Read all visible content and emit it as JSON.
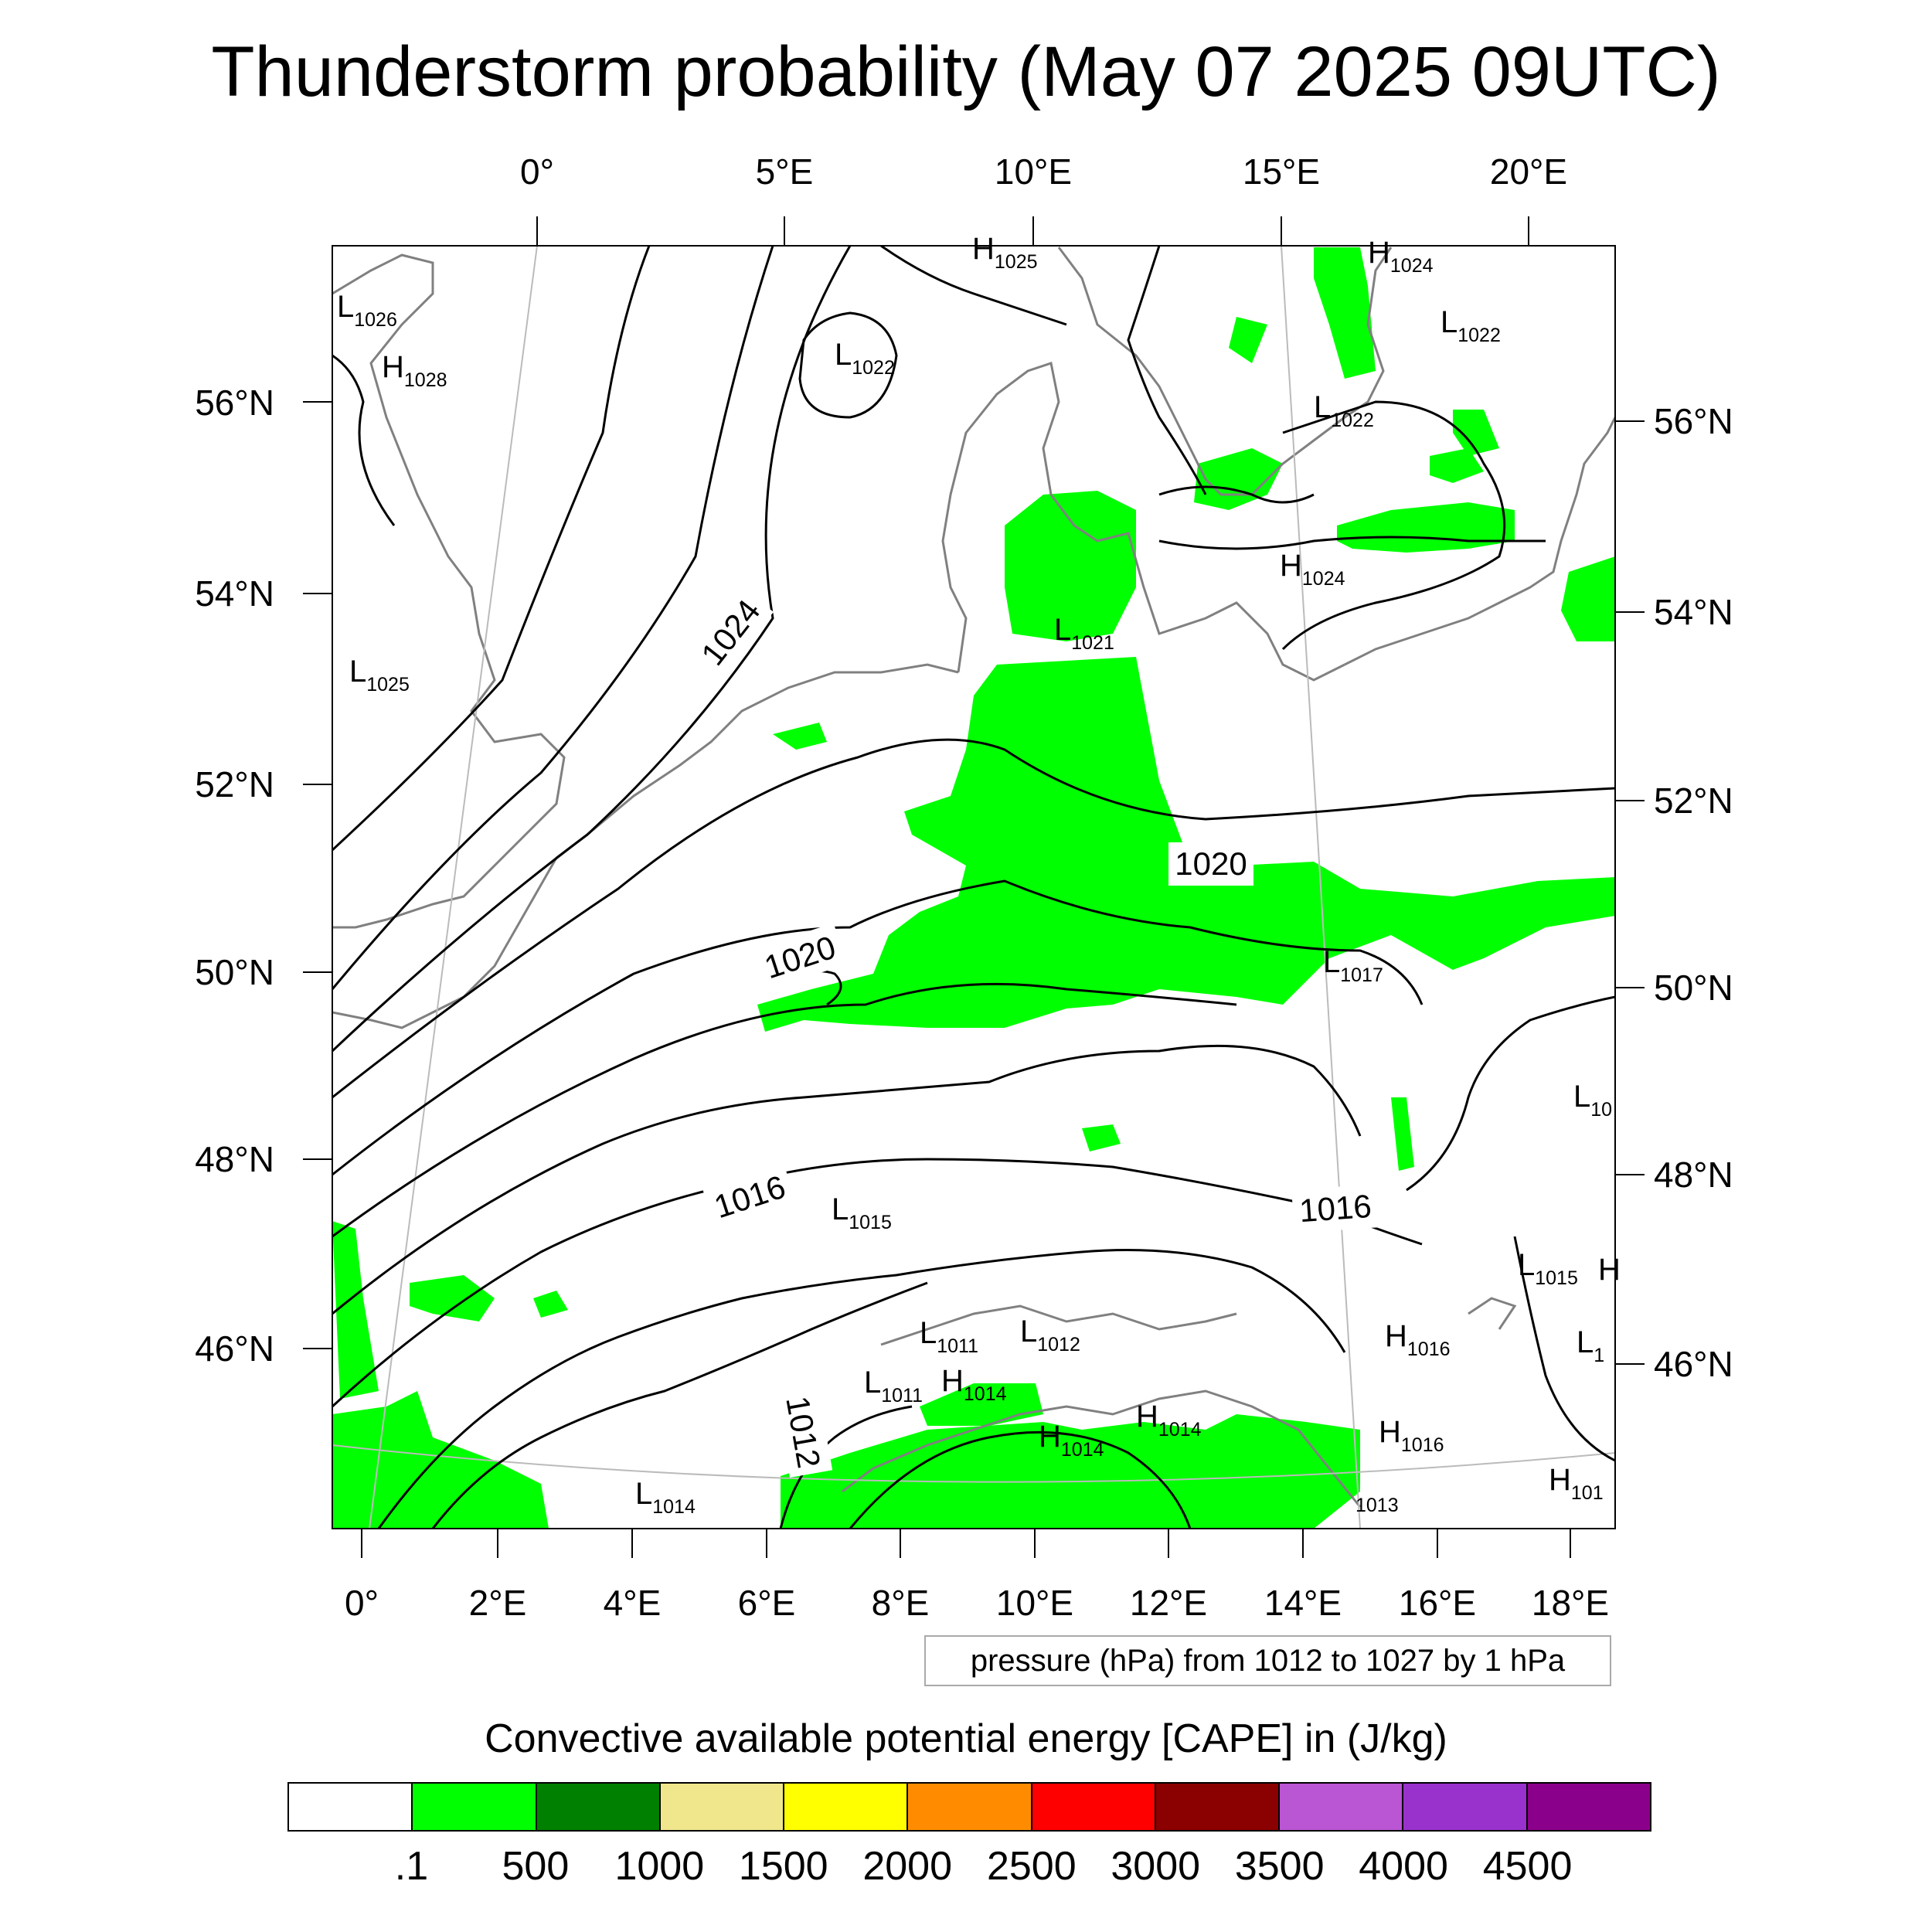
{
  "title": "Thunderstorm probability (May 07 2025 09UTC)",
  "top_lon_labels": [
    "0°",
    "5°E",
    "10°E",
    "15°E",
    "20°E"
  ],
  "bottom_lon_labels": [
    "0°",
    "2°E",
    "4°E",
    "6°E",
    "8°E",
    "10°E",
    "12°E",
    "14°E",
    "16°E",
    "18°E"
  ],
  "left_lat_labels": [
    "56°N",
    "54°N",
    "52°N",
    "50°N",
    "48°N",
    "46°N"
  ],
  "right_lat_labels": [
    "56°N",
    "54°N",
    "52°N",
    "50°N",
    "48°N",
    "46°N"
  ],
  "contour_labels": [
    "1024",
    "1020",
    "1020",
    "1016",
    "1016",
    "1012"
  ],
  "pressure_centers": [
    {
      "type": "H",
      "value": "1025"
    },
    {
      "type": "H",
      "value": "1024"
    },
    {
      "type": "L",
      "value": "1026"
    },
    {
      "type": "H",
      "value": "1028"
    },
    {
      "type": "L",
      "value": "1022"
    },
    {
      "type": "L",
      "value": "1022"
    },
    {
      "type": "L",
      "value": "1022"
    },
    {
      "type": "H",
      "value": "1024"
    },
    {
      "type": "L",
      "value": "1025"
    },
    {
      "type": "L",
      "value": "1021"
    },
    {
      "type": "L",
      "value": "1017"
    },
    {
      "type": "L",
      "value": "10"
    },
    {
      "type": "L",
      "value": "1015"
    },
    {
      "type": "L",
      "value": "1015"
    },
    {
      "type": "H",
      "value": ""
    },
    {
      "type": "L",
      "value": "1011"
    },
    {
      "type": "L",
      "value": "1012"
    },
    {
      "type": "H",
      "value": "1016"
    },
    {
      "type": "L",
      "value": "1"
    },
    {
      "type": "L",
      "value": "1011"
    },
    {
      "type": "H",
      "value": "1014"
    },
    {
      "type": "H",
      "value": "1014"
    },
    {
      "type": "H",
      "value": "1014"
    },
    {
      "type": "H",
      "value": "1016"
    },
    {
      "type": "L",
      "value": "1014"
    },
    {
      "type": "",
      "value": "1013"
    },
    {
      "type": "H",
      "value": "101"
    }
  ],
  "info_box": "pressure (hPa) from 1012 to 1027 by 1 hPa",
  "colorbar": {
    "title": "Convective available potential energy [CAPE] in (J/kg)",
    "colors": [
      "#ffffff",
      "#00ff00",
      "#008000",
      "#f0e68c",
      "#ffff00",
      "#ff8c00",
      "#ff0000",
      "#8b0000",
      "#ba55d3",
      "#9932cc",
      "#8b008b"
    ],
    "labels": [
      ".1",
      "500",
      "1000",
      "1500",
      "2000",
      "2500",
      "3000",
      "3500",
      "4000",
      "4500"
    ]
  },
  "colors": {
    "cape_fill": "#00ff00",
    "coastline": "#808080",
    "isobar": "#000000"
  }
}
